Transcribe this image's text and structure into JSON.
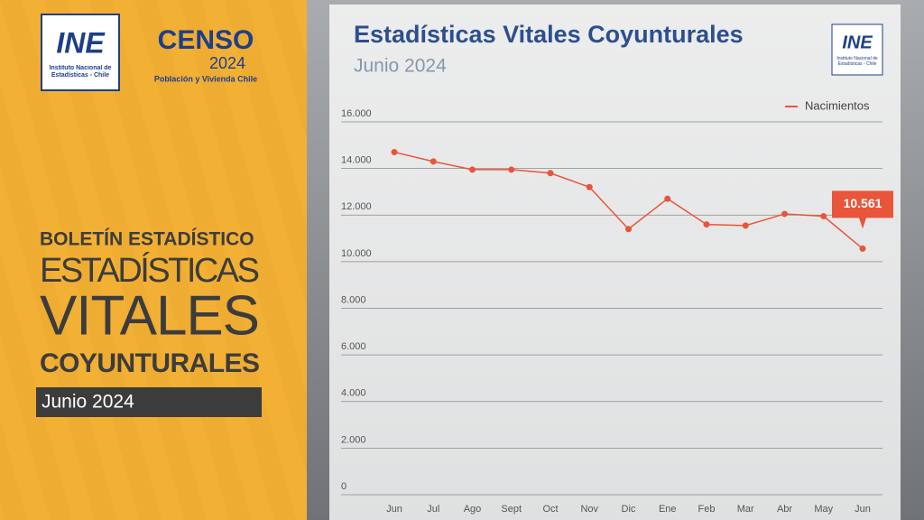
{
  "sidebar": {
    "ine_logo": "INE",
    "ine_name": "Instituto Nacional de Estadísticas - Chile",
    "censo": "CENSO",
    "censo_year": "2024",
    "censo_sub": "Población y Vivienda Chile",
    "line1": "BOLETÍN ESTADÍSTICO",
    "line2": "ESTADÍSTICAS",
    "line3": "VITALES",
    "line4": "COYUNTURALES",
    "date": "Junio 2024"
  },
  "chart_logo": {
    "text": "INE",
    "name": "Instituto Nacional de Estadísticas - Chile"
  },
  "chart_data": {
    "type": "line",
    "title": "Estadísticas Vitales Coyunturales",
    "subtitle": "Junio 2024",
    "categories": [
      "Jun",
      "Jul",
      "Ago",
      "Sept",
      "Oct",
      "Nov",
      "Dic",
      "Ene",
      "Feb",
      "Mar",
      "Abr",
      "May",
      "Jun"
    ],
    "series": [
      {
        "name": "Nacimientos",
        "color": "#e8553a",
        "values": [
          14700,
          14300,
          13950,
          13950,
          13800,
          13200,
          11400,
          12700,
          11600,
          11550,
          12050,
          11950,
          10561
        ],
        "value_labels": [
          null,
          null,
          null,
          null,
          null,
          null,
          null,
          null,
          null,
          null,
          null,
          null,
          "10.561"
        ]
      }
    ],
    "ylim": [
      0,
      16000
    ],
    "yticks": [
      0,
      {
        "value": 2000,
        "label": "2.000"
      },
      {
        "value": 4000,
        "label": "4.000"
      },
      {
        "value": 6000,
        "label": "6.000"
      },
      {
        "value": 8000,
        "label": "8.000"
      },
      {
        "value": 10000,
        "label": "10.000"
      },
      {
        "value": 12000,
        "label": "12.000"
      },
      {
        "value": 14000,
        "label": "14.000"
      },
      {
        "value": 16000,
        "label": "16.000"
      }
    ],
    "grid": true,
    "legend": "top-right"
  }
}
